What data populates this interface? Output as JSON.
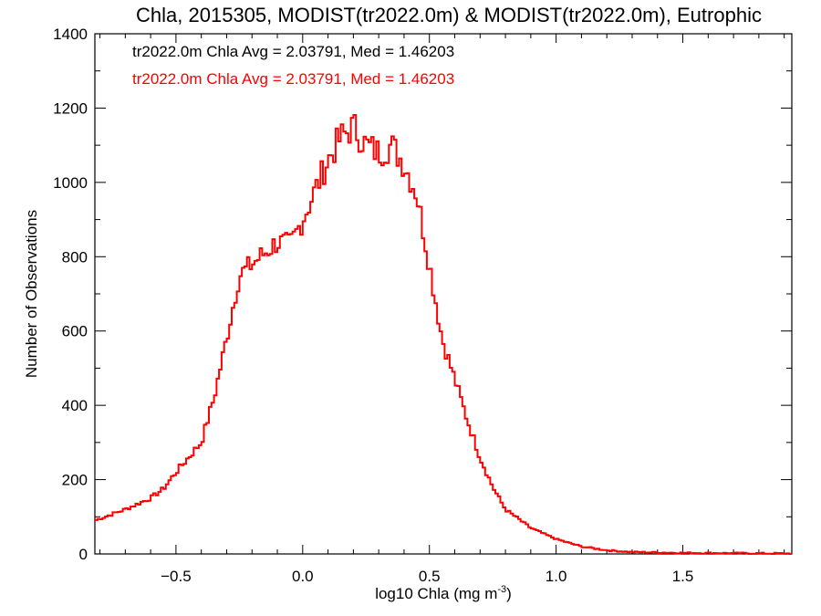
{
  "chart_data": {
    "type": "histogram",
    "title": "Chla, 2015305, MODIST(tr2022.0m) & MODIST(tr2022.0m), Eutrophic",
    "xlabel": "log10 Chla (mg m",
    "xlabel_sup": "-3",
    "xlabel_tail": ")",
    "ylabel": "Number of Observations",
    "xlim": [
      -0.82,
      1.93
    ],
    "ylim": [
      0,
      1400
    ],
    "x_ticks": [
      -0.5,
      0.0,
      0.5,
      1.0,
      1.5
    ],
    "x_tick_labels": [
      "−0.5",
      "0.0",
      "0.5",
      "1.0",
      "1.5"
    ],
    "y_ticks": [
      0,
      200,
      400,
      600,
      800,
      1000,
      1200,
      1400
    ],
    "y_tick_labels": [
      "0",
      "200",
      "400",
      "600",
      "800",
      "1000",
      "1200",
      "1400"
    ],
    "annotations": [
      {
        "text": "tr2022.0m Chla Avg = 2.03791, Med = 1.46203",
        "color": "#000000"
      },
      {
        "text": "tr2022.0m Chla Avg = 2.03791, Med = 1.46203",
        "color": "#ff0000"
      }
    ],
    "series_color": "#ff0000",
    "series": [
      {
        "x": [
          -0.82,
          -0.7,
          -0.6,
          -0.55,
          -0.5,
          -0.45,
          -0.4,
          -0.35,
          -0.3,
          -0.25,
          -0.2,
          -0.15,
          -0.1,
          -0.05,
          0.0,
          0.05,
          0.1,
          0.15,
          0.2,
          0.25,
          0.3,
          0.35,
          0.4,
          0.45,
          0.5,
          0.55,
          0.6,
          0.65,
          0.7,
          0.75,
          0.8,
          0.9,
          1.0,
          1.1,
          1.2,
          1.3,
          1.5,
          1.7,
          1.93
        ],
        "y": [
          90,
          120,
          150,
          175,
          220,
          260,
          300,
          420,
          580,
          750,
          780,
          810,
          840,
          830,
          900,
          980,
          1060,
          1120,
          1150,
          1100,
          1080,
          1100,
          1050,
          970,
          780,
          580,
          470,
          360,
          260,
          180,
          120,
          70,
          40,
          20,
          10,
          5,
          3,
          2,
          1
        ]
      }
    ]
  }
}
